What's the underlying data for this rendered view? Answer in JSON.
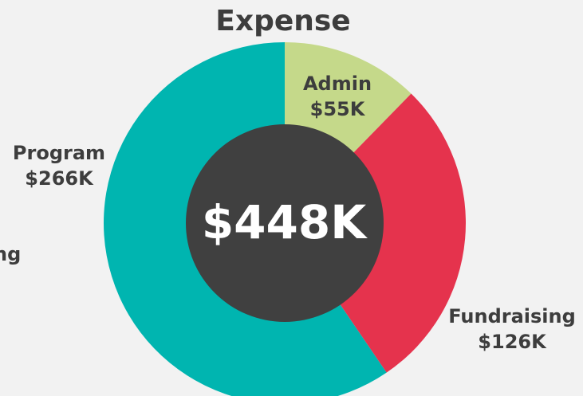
{
  "chart_data": {
    "type": "donut",
    "title": "Expense",
    "center_label": "$448K",
    "categories": [
      "Admin",
      "Fundraising",
      "Program"
    ],
    "values": [
      55,
      126,
      266
    ],
    "value_labels": [
      "$55K",
      "$126K",
      "$266K"
    ],
    "colors": [
      "#c5d98a",
      "#e5334d",
      "#00b5b0"
    ],
    "annotations": [
      "ng"
    ]
  }
}
